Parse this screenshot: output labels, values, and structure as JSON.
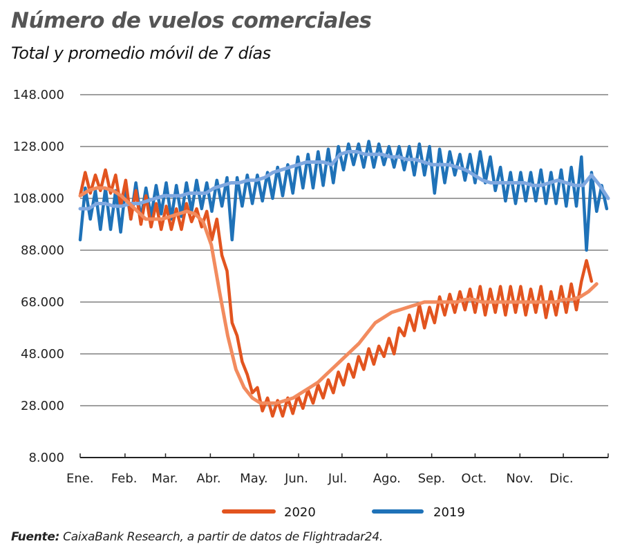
{
  "header": {
    "title": "Número de vuelos comerciales",
    "subtitle": "Total y promedio móvil de 7 días"
  },
  "footer": {
    "label": "Fuente:",
    "text": " CaixaBank Research, a partir de datos de Flightradar24."
  },
  "colors": {
    "s2020_daily": "#e2541f",
    "s2020_ma": "#f28b5e",
    "s2019_daily": "#1f72b8",
    "s2019_ma": "#7fa8e0",
    "grid": "#666666",
    "axis": "#222222"
  },
  "chart_data": {
    "type": "line",
    "title": "Número de vuelos comerciales",
    "subtitle": "Total y promedio móvil de 7 días",
    "xlabel": "",
    "ylabel": "",
    "ylim": [
      8000,
      148000
    ],
    "yticks": [
      8000,
      28000,
      48000,
      68000,
      88000,
      108000,
      128000,
      148000
    ],
    "ytick_labels": [
      "8.000",
      "28.000",
      "48.000",
      "68.000",
      "88.000",
      "108.000",
      "128.000",
      "148.000"
    ],
    "xlim_days": [
      0,
      365
    ],
    "month_starts": [
      0,
      31,
      59,
      90,
      120,
      151,
      181,
      212,
      243,
      273,
      304,
      334,
      365
    ],
    "categories": [
      "Ene.",
      "Feb.",
      "Mar.",
      "Abr.",
      "May.",
      "Jun.",
      "Jul.",
      "Ago.",
      "Sep.",
      "Oct.",
      "Nov.",
      "Dic."
    ],
    "grid": true,
    "legend": {
      "position": "bottom",
      "entries": [
        "2020",
        "2019"
      ]
    },
    "series": [
      {
        "name": "2019",
        "kind": "daily",
        "day_step": 3.5,
        "values": [
          92000,
          112000,
          100000,
          111000,
          96000,
          112000,
          96000,
          111000,
          95000,
          113000,
          100000,
          114000,
          100000,
          112000,
          101000,
          113000,
          102000,
          114000,
          100000,
          113000,
          101000,
          114000,
          103000,
          115000,
          104000,
          114000,
          103000,
          115000,
          105000,
          116000,
          92000,
          116000,
          105000,
          117000,
          106000,
          117000,
          107000,
          118000,
          108000,
          120000,
          109000,
          121000,
          110000,
          124000,
          112000,
          125000,
          112000,
          126000,
          113000,
          127000,
          114000,
          128000,
          119000,
          129000,
          121000,
          129000,
          120000,
          130000,
          120000,
          129000,
          121000,
          128000,
          120000,
          128000,
          119000,
          128000,
          117000,
          129000,
          117000,
          128000,
          110000,
          127000,
          114000,
          126000,
          117000,
          125000,
          115000,
          125000,
          114000,
          126000,
          114000,
          124000,
          111000,
          120000,
          107000,
          118000,
          106000,
          118000,
          107000,
          118000,
          107000,
          119000,
          106000,
          118000,
          106000,
          119000,
          105000,
          120000,
          105000,
          124000,
          88000,
          118000,
          103000,
          113000,
          104000
        ],
        "ma": [
          104000,
          104000,
          106000,
          106000,
          105000,
          105000,
          106000,
          106000,
          107000,
          108000,
          109000,
          109000,
          109000,
          110000,
          110000,
          110000,
          112000,
          113000,
          114000,
          114000,
          115000,
          115000,
          116000,
          118000,
          119000,
          120000,
          121000,
          122000,
          122000,
          122000,
          121000,
          125000,
          126000,
          126000,
          125000,
          125000,
          125000,
          124000,
          124000,
          123000,
          123000,
          122000,
          121000,
          121000,
          121000,
          120000,
          119000,
          117000,
          115000,
          114000,
          114000,
          114000,
          114000,
          114000,
          113000,
          113000,
          114000,
          115000,
          114000,
          113000,
          113000,
          117000,
          113000,
          108000
        ]
      },
      {
        "name": "2020",
        "kind": "daily",
        "day_step": 3.5,
        "values": [
          109000,
          118000,
          110000,
          117000,
          111000,
          119000,
          110000,
          117000,
          105000,
          115000,
          100000,
          111000,
          98000,
          109000,
          97000,
          106000,
          96000,
          105000,
          96000,
          104000,
          96000,
          106000,
          99000,
          104000,
          97000,
          103000,
          92000,
          100000,
          86000,
          80000,
          60000,
          55000,
          45000,
          40000,
          33000,
          35000,
          26000,
          31000,
          24000,
          30000,
          24000,
          31000,
          25000,
          32000,
          27000,
          34000,
          29000,
          36000,
          31000,
          38000,
          33000,
          41000,
          36000,
          44000,
          39000,
          47000,
          42000,
          50000,
          44000,
          51000,
          47000,
          54000,
          48000,
          58000,
          55000,
          63000,
          57000,
          67000,
          58000,
          66000,
          60000,
          70000,
          63000,
          71000,
          64000,
          72000,
          65000,
          73000,
          64000,
          74000,
          63000,
          73000,
          64000,
          74000,
          63000,
          74000,
          64000,
          74000,
          63000,
          73000,
          64000,
          74000,
          62000,
          72000,
          63000,
          74000,
          64000,
          75000,
          65000,
          76000,
          84000,
          76000
        ],
        "ma": [
          109000,
          111000,
          112000,
          112000,
          111000,
          109000,
          106000,
          103000,
          100000,
          100000,
          100000,
          101000,
          102000,
          103000,
          102000,
          99000,
          90000,
          72000,
          55000,
          42000,
          35000,
          31000,
          29000,
          29000,
          29000,
          30000,
          31000,
          33000,
          35000,
          37000,
          40000,
          43000,
          46000,
          49000,
          52000,
          56000,
          60000,
          62000,
          64000,
          65000,
          66000,
          67000,
          68000,
          68000,
          68000,
          68000,
          68000,
          69000,
          69000,
          68000,
          68000,
          68000,
          68000,
          68000,
          68000,
          68000,
          68000,
          68000,
          68000,
          69000,
          69000,
          70000,
          72000,
          75000
        ]
      }
    ]
  }
}
